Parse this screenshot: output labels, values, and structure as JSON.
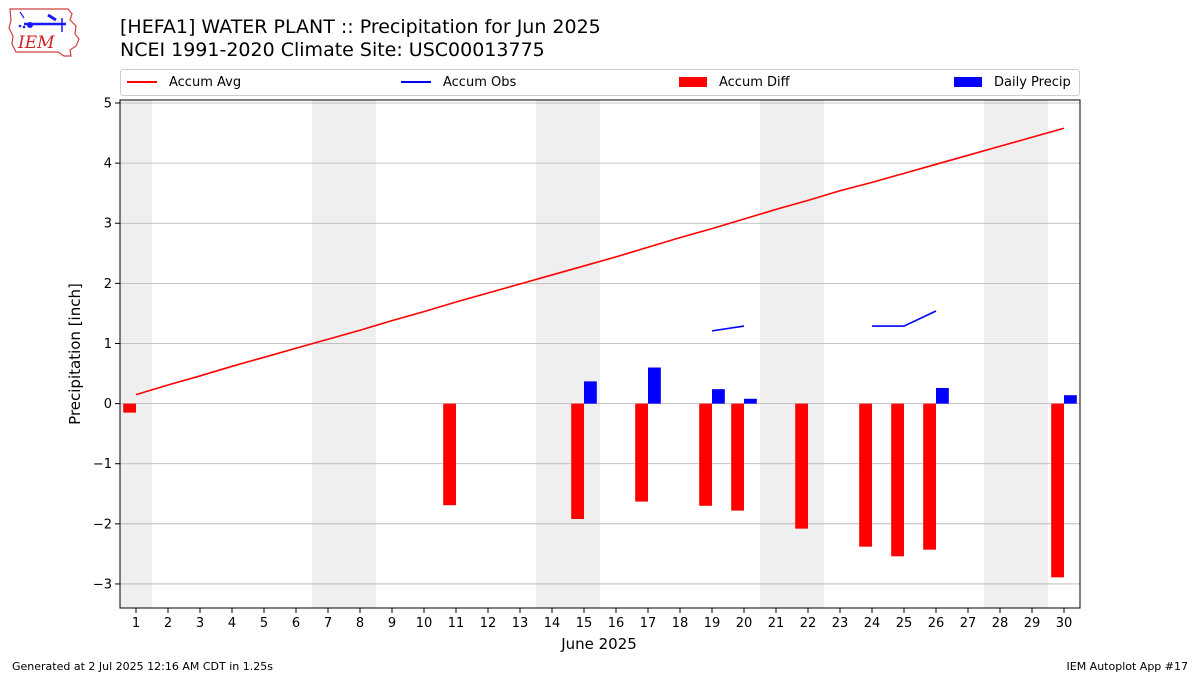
{
  "title_line1": "[HEFA1] WATER PLANT :: Precipitation for Jun 2025",
  "title_line2": "NCEI 1991-2020 Climate Site: USC00013775",
  "logo_text": "IEM",
  "footer_left": "Generated at 2 Jul 2025 12:16 AM CDT in 1.25s",
  "footer_right": "IEM Autoplot App #17",
  "colors": {
    "avg": "#ff0000",
    "obs": "#0000ff",
    "diff": "#ff0000",
    "precip": "#0000ff",
    "weekend": "#efefef",
    "grid": "#b0b0b0"
  },
  "chart_data": {
    "type": "bar",
    "xlabel": "June 2025",
    "ylabel": "Precipitation [inch]",
    "xlim": [
      0.5,
      30.5
    ],
    "ylim": [
      -3.4,
      5.05
    ],
    "yticks": [
      -3,
      -2,
      -1,
      0,
      1,
      2,
      3,
      4,
      5
    ],
    "ytick_labels": [
      "−3",
      "−2",
      "−1",
      "0",
      "1",
      "2",
      "3",
      "4",
      "5"
    ],
    "days": [
      1,
      2,
      3,
      4,
      5,
      6,
      7,
      8,
      9,
      10,
      11,
      12,
      13,
      14,
      15,
      16,
      17,
      18,
      19,
      20,
      21,
      22,
      23,
      24,
      25,
      26,
      27,
      28,
      29,
      30
    ],
    "day_labels": [
      "1",
      "2",
      "3",
      "4",
      "5",
      "6",
      "7",
      "8",
      "9",
      "10",
      "11",
      "12",
      "13",
      "14",
      "15",
      "16",
      "17",
      "18",
      "19",
      "20",
      "21",
      "22",
      "23",
      "24",
      "25",
      "26",
      "27",
      "28",
      "29",
      "30"
    ],
    "weekend_shading": [
      [
        0.5,
        1.5
      ],
      [
        6.5,
        8.5
      ],
      [
        13.5,
        15.5
      ],
      [
        20.5,
        22.5
      ],
      [
        27.5,
        29.5
      ]
    ],
    "grid": "y",
    "legend_position": "top",
    "legend": [
      "Accum Avg",
      "Accum Obs",
      "Accum Diff",
      "Daily Precip"
    ],
    "series": [
      {
        "name": "Accum Avg",
        "kind": "line",
        "values": [
          0.15,
          0.31,
          0.46,
          0.62,
          0.77,
          0.92,
          1.07,
          1.22,
          1.38,
          1.53,
          1.69,
          1.84,
          1.99,
          2.14,
          2.29,
          2.44,
          2.6,
          2.76,
          2.91,
          3.07,
          3.23,
          3.38,
          3.54,
          3.68,
          3.83,
          3.98,
          4.13,
          4.28,
          4.43,
          4.58
        ]
      },
      {
        "name": "Accum Obs",
        "kind": "line",
        "values": [
          null,
          null,
          null,
          null,
          null,
          null,
          null,
          null,
          null,
          null,
          null,
          null,
          null,
          null,
          null,
          null,
          null,
          null,
          1.21,
          1.29,
          null,
          null,
          null,
          1.29,
          1.29,
          1.54,
          null,
          null,
          null,
          null
        ]
      },
      {
        "name": "Accum Diff",
        "kind": "bar",
        "values": [
          -0.15,
          null,
          null,
          null,
          null,
          null,
          null,
          null,
          null,
          null,
          -1.69,
          null,
          null,
          null,
          -1.92,
          null,
          -1.63,
          null,
          -1.7,
          -1.78,
          null,
          -2.08,
          null,
          -2.38,
          -2.54,
          -2.43,
          null,
          null,
          null,
          -2.89
        ]
      },
      {
        "name": "Daily Precip",
        "kind": "bar",
        "values": [
          null,
          null,
          null,
          null,
          null,
          null,
          null,
          null,
          null,
          null,
          null,
          null,
          null,
          null,
          0.37,
          null,
          0.6,
          null,
          0.24,
          0.08,
          null,
          null,
          null,
          null,
          null,
          0.26,
          null,
          null,
          null,
          0.14
        ]
      }
    ]
  }
}
